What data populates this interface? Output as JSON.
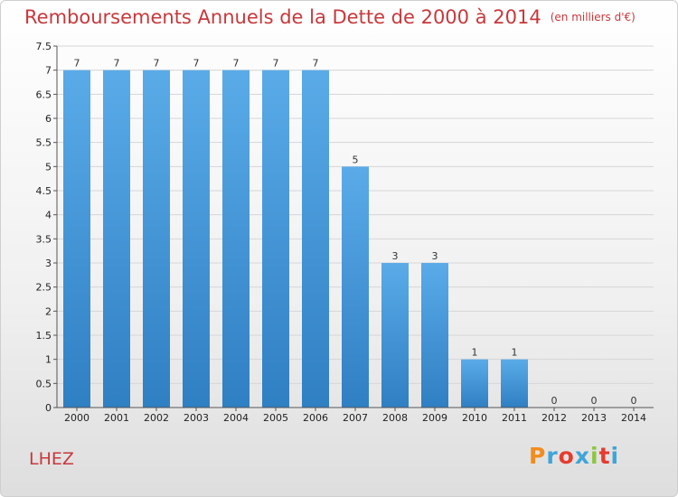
{
  "header": {
    "title": "Remboursements Annuels de la Dette de 2000 à 2014",
    "unit": "(en milliers d'€)"
  },
  "footer": {
    "place": "LHEZ",
    "logo_letters": [
      "P",
      "r",
      "o",
      "x",
      "i",
      "t",
      "i"
    ],
    "logo_colors": [
      "#f28c1e",
      "#3fa5d8",
      "#e63c2f",
      "#3fa5d8",
      "#8cc63f",
      "#e63c2f",
      "#3fa5d8"
    ]
  },
  "chart_data": {
    "type": "bar",
    "title": "Remboursements Annuels de la Dette de 2000 à 2014",
    "subtitle": "(en milliers d'€)",
    "categories": [
      "2000",
      "2001",
      "2002",
      "2003",
      "2004",
      "2005",
      "2006",
      "2007",
      "2008",
      "2009",
      "2010",
      "2011",
      "2012",
      "2013",
      "2014"
    ],
    "values": [
      7,
      7,
      7,
      7,
      7,
      7,
      7,
      5,
      3,
      3,
      1,
      1,
      0,
      0,
      0
    ],
    "yticks": [
      "0",
      "0.5",
      "1",
      "1.5",
      "2",
      "2.5",
      "3",
      "3.5",
      "4",
      "4.5",
      "5",
      "5.5",
      "6",
      "6.5",
      "7",
      "7.5"
    ],
    "ylim": [
      0,
      7.5
    ],
    "grid": true,
    "bar_color_top": "#5aabe8",
    "bar_color_bottom": "#2f7fc3"
  }
}
